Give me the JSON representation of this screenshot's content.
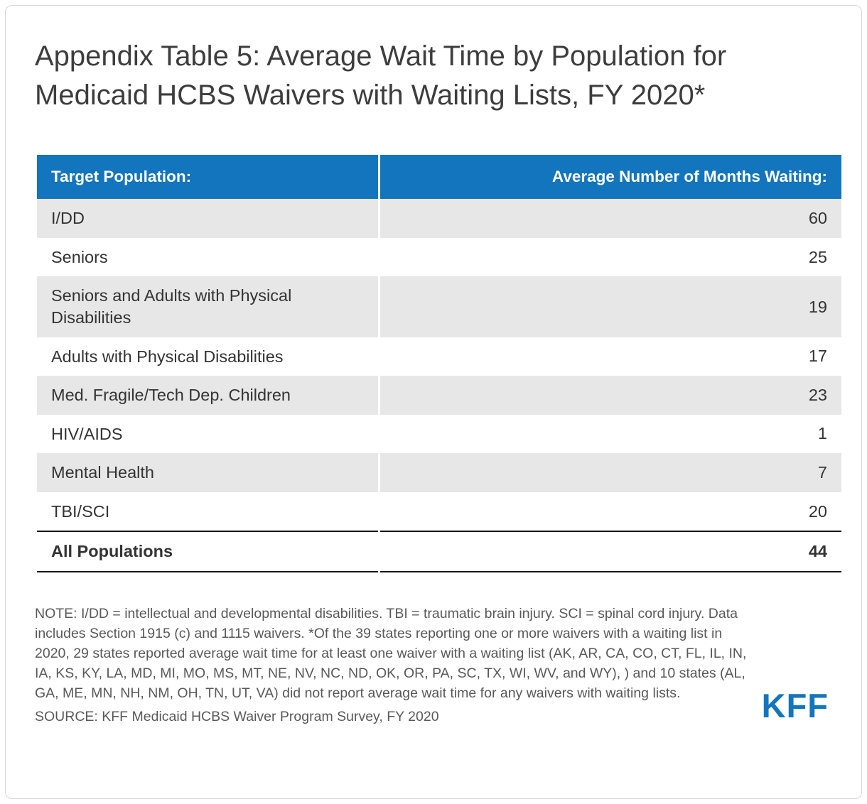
{
  "page": {
    "title": "Appendix Table 5: Average Wait Time by Population for Medicaid HCBS Waivers with Waiting Lists, FY 2020*",
    "note": "NOTE: I/DD = intellectual and developmental disabilities. TBI = traumatic brain injury. SCI = spinal cord injury. Data includes Section 1915 (c) and 1115 waivers. *Of the 39 states reporting one or more waivers with a waiting list in 2020, 29 states reported average wait time for at least one waiver with a waiting list (AK, AR, CA, CO, CT, FL, IL, IN, IA, KS, KY, LA, MD, MI, MO, MS, MT, NE, NV, NC, ND, OK, OR, PA, SC, TX, WI, WV, and WY), ) and 10 states (AL, GA, ME, MN, NH, NM, OH, TN, UT, VA) did not report average wait time for any waivers with waiting lists.",
    "source": "SOURCE: KFF Medicaid HCBS Waiver Program Survey, FY 2020",
    "logo_text": "KFF"
  },
  "colors": {
    "header_bg": "#1375BD",
    "alt_row_bg": "#E7E7E7",
    "logo_blue": "#1375BD"
  },
  "chart_data": {
    "type": "table",
    "title": "Appendix Table 5: Average Wait Time by Population for Medicaid HCBS Waivers with Waiting Lists, FY 2020*",
    "columns": [
      "Target Population:",
      "Average Number of Months Waiting:"
    ],
    "rows": [
      {
        "label": "I/DD",
        "value": 60
      },
      {
        "label": "Seniors",
        "value": 25
      },
      {
        "label": "Seniors and Adults with Physical Disabilities",
        "value": 19
      },
      {
        "label": "Adults with Physical Disabilities",
        "value": 17
      },
      {
        "label": "Med. Fragile/Tech Dep. Children",
        "value": 23
      },
      {
        "label": "HIV/AIDS",
        "value": 1
      },
      {
        "label": "Mental Health",
        "value": 7
      },
      {
        "label": "TBI/SCI",
        "value": 20
      },
      {
        "label": "All Populations",
        "value": 44,
        "total": true
      }
    ]
  }
}
